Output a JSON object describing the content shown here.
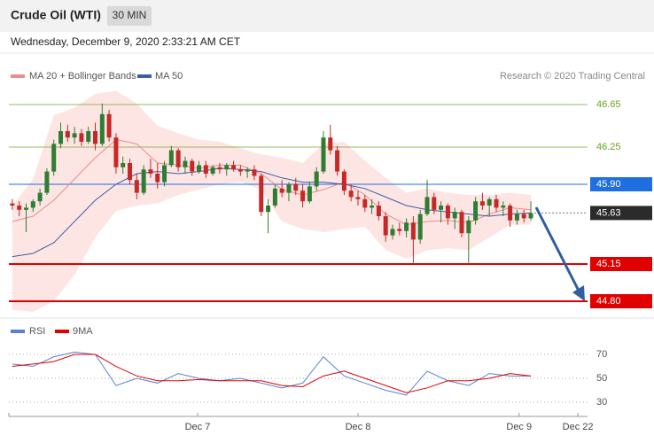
{
  "chart_data": {
    "type": "candlestick",
    "title": "Crude Oil (WTI)",
    "timeframe": "30 MIN",
    "timestamp": "Wednesday, December 9, 2020 2:33:21 AM CET",
    "credit": "Research © 2020 Trading Central",
    "xlim": [
      -0.5,
      83.2
    ],
    "xticks": [
      {
        "value": 26.8,
        "label": "Dec 7"
      },
      {
        "value": 50,
        "label": "Dec 8"
      },
      {
        "value": 73.3,
        "label": "Dec 9"
      },
      {
        "value": 81.8,
        "label": "Dec 22"
      }
    ],
    "ylim": [
      44.66,
      46.8
    ],
    "up_color": "#2e7d32",
    "down_color": "#c62828",
    "candles": [
      [
        45.72,
        45.76,
        45.66,
        45.7
      ],
      [
        45.7,
        45.74,
        45.6,
        45.66
      ],
      [
        45.66,
        45.72,
        45.45,
        45.68
      ],
      [
        45.68,
        45.76,
        45.64,
        45.74
      ],
      [
        45.74,
        45.86,
        45.7,
        45.82
      ],
      [
        45.82,
        46.05,
        45.8,
        46.02
      ],
      [
        46.02,
        46.32,
        45.98,
        46.28
      ],
      [
        46.28,
        46.48,
        46.24,
        46.4
      ],
      [
        46.4,
        46.46,
        46.3,
        46.34
      ],
      [
        46.34,
        46.44,
        46.28,
        46.38
      ],
      [
        46.38,
        46.42,
        46.26,
        46.3
      ],
      [
        46.3,
        46.44,
        46.28,
        46.4
      ],
      [
        46.4,
        46.48,
        46.22,
        46.28
      ],
      [
        46.28,
        46.66,
        46.26,
        46.56
      ],
      [
        46.56,
        46.6,
        46.3,
        46.34
      ],
      [
        46.34,
        46.38,
        46.0,
        46.06
      ],
      [
        46.06,
        46.16,
        46.0,
        46.1
      ],
      [
        46.1,
        46.14,
        45.9,
        45.94
      ],
      [
        45.94,
        46.0,
        45.76,
        45.82
      ],
      [
        45.82,
        46.08,
        45.8,
        46.04
      ],
      [
        46.04,
        46.14,
        45.96,
        46.0
      ],
      [
        46.0,
        46.1,
        45.86,
        45.92
      ],
      [
        45.92,
        46.12,
        45.88,
        46.08
      ],
      [
        46.08,
        46.26,
        46.06,
        46.22
      ],
      [
        46.22,
        46.24,
        46.02,
        46.06
      ],
      [
        46.06,
        46.16,
        46.0,
        46.12
      ],
      [
        46.12,
        46.14,
        45.98,
        46.02
      ],
      [
        46.02,
        46.12,
        46.0,
        46.08
      ],
      [
        46.08,
        46.12,
        45.96,
        46.0
      ],
      [
        46.0,
        46.08,
        45.98,
        46.06
      ],
      [
        46.06,
        46.1,
        46.0,
        46.04
      ],
      [
        46.04,
        46.1,
        45.98,
        46.08
      ],
      [
        46.08,
        46.12,
        46.02,
        46.04
      ],
      [
        46.04,
        46.08,
        45.98,
        46.02
      ],
      [
        46.02,
        46.06,
        45.96,
        46.04
      ],
      [
        46.04,
        46.08,
        45.94,
        45.98
      ],
      [
        45.98,
        46.0,
        45.6,
        45.64
      ],
      [
        45.64,
        45.76,
        45.44,
        45.7
      ],
      [
        45.7,
        45.9,
        45.68,
        45.86
      ],
      [
        45.86,
        45.94,
        45.78,
        45.82
      ],
      [
        45.82,
        45.92,
        45.74,
        45.9
      ],
      [
        45.9,
        45.96,
        45.8,
        45.84
      ],
      [
        45.84,
        45.9,
        45.68,
        45.74
      ],
      [
        45.74,
        45.92,
        45.72,
        45.88
      ],
      [
        45.88,
        46.06,
        45.84,
        46.02
      ],
      [
        46.02,
        46.4,
        46.0,
        46.34
      ],
      [
        46.34,
        46.46,
        46.18,
        46.22
      ],
      [
        46.22,
        46.26,
        45.98,
        46.02
      ],
      [
        46.02,
        46.04,
        45.8,
        45.84
      ],
      [
        45.84,
        45.9,
        45.74,
        45.78
      ],
      [
        45.78,
        45.84,
        45.7,
        45.76
      ],
      [
        45.76,
        45.8,
        45.64,
        45.68
      ],
      [
        45.68,
        45.76,
        45.62,
        45.7
      ],
      [
        45.7,
        45.74,
        45.56,
        45.6
      ],
      [
        45.6,
        45.64,
        45.36,
        45.42
      ],
      [
        45.42,
        45.52,
        45.38,
        45.48
      ],
      [
        45.48,
        45.54,
        45.42,
        45.46
      ],
      [
        45.46,
        45.58,
        45.4,
        45.54
      ],
      [
        45.54,
        45.6,
        45.16,
        45.38
      ],
      [
        45.38,
        45.66,
        45.34,
        45.62
      ],
      [
        45.62,
        45.94,
        45.6,
        45.78
      ],
      [
        45.78,
        45.82,
        45.62,
        45.66
      ],
      [
        45.66,
        45.74,
        45.54,
        45.7
      ],
      [
        45.7,
        45.72,
        45.52,
        45.58
      ],
      [
        45.58,
        45.68,
        45.48,
        45.64
      ],
      [
        45.64,
        45.66,
        45.4,
        45.44
      ],
      [
        45.44,
        45.6,
        45.16,
        45.56
      ],
      [
        45.56,
        45.78,
        45.52,
        45.74
      ],
      [
        45.74,
        45.82,
        45.66,
        45.7
      ],
      [
        45.7,
        45.78,
        45.6,
        45.76
      ],
      [
        45.76,
        45.8,
        45.64,
        45.68
      ],
      [
        45.68,
        45.74,
        45.6,
        45.7
      ],
      [
        45.7,
        45.72,
        45.5,
        45.56
      ],
      [
        45.56,
        45.66,
        45.52,
        45.62
      ],
      [
        45.62,
        45.66,
        45.54,
        45.58
      ],
      [
        45.58,
        45.74,
        45.56,
        45.63
      ]
    ],
    "bands": {
      "name": "MA 20 + Bollinger Bands",
      "color": "#e88e8e",
      "fill": "#fde0de",
      "x": [
        0,
        3,
        6,
        9,
        12,
        15,
        18,
        21,
        24,
        27,
        30,
        33,
        36,
        39,
        42,
        45,
        48,
        51,
        54,
        57,
        60,
        63,
        66,
        69,
        72,
        75
      ],
      "upper": [
        45.7,
        45.95,
        46.55,
        46.62,
        46.75,
        46.78,
        46.66,
        46.45,
        46.38,
        46.32,
        46.3,
        46.24,
        46.18,
        46.15,
        46.1,
        46.28,
        46.3,
        46.12,
        45.96,
        45.82,
        45.86,
        45.82,
        45.8,
        45.8,
        45.82,
        45.8
      ],
      "middle": [
        45.55,
        45.6,
        45.75,
        45.95,
        46.15,
        46.32,
        46.28,
        46.1,
        46.08,
        46.05,
        46.08,
        46.08,
        46.0,
        45.85,
        45.8,
        45.85,
        45.92,
        45.8,
        45.62,
        45.52,
        45.55,
        45.56,
        45.54,
        45.62,
        45.68,
        45.66
      ],
      "lower": [
        44.72,
        44.7,
        44.8,
        45.05,
        45.4,
        45.65,
        45.7,
        45.72,
        45.8,
        45.85,
        45.9,
        45.92,
        45.85,
        45.55,
        45.48,
        45.45,
        45.48,
        45.5,
        45.28,
        45.2,
        45.28,
        45.3,
        45.28,
        45.4,
        45.52,
        45.52
      ]
    },
    "ma50": {
      "name": "MA 50",
      "color": "#3a5ea8",
      "x": [
        0,
        3,
        6,
        9,
        12,
        15,
        18,
        21,
        24,
        27,
        30,
        33,
        36,
        39,
        42,
        45,
        48,
        51,
        54,
        57,
        60,
        63,
        66,
        69,
        72,
        75
      ],
      "values": [
        45.22,
        45.25,
        45.35,
        45.55,
        45.75,
        45.9,
        46.0,
        46.02,
        46.0,
        46.02,
        46.05,
        46.04,
        46.02,
        45.96,
        45.92,
        45.92,
        45.9,
        45.86,
        45.78,
        45.7,
        45.66,
        45.64,
        45.62,
        45.6,
        45.62,
        45.63
      ]
    },
    "levels": [
      {
        "value": 46.65,
        "label": "46.65",
        "color": "#6aa121",
        "style": "line"
      },
      {
        "value": 46.25,
        "label": "46.25",
        "color": "#6aa121",
        "style": "line"
      },
      {
        "value": 45.9,
        "label": "45.90",
        "color": "#1f6fe0",
        "style": "box"
      },
      {
        "value": 45.15,
        "label": "45.15",
        "color": "#e00000",
        "style": "box"
      },
      {
        "value": 44.8,
        "label": "44.80",
        "color": "#e00000",
        "style": "box"
      }
    ],
    "last": {
      "value": 45.63,
      "label": "45.63",
      "color": "#2b2b2b"
    },
    "rsi": {
      "ylim": [
        20,
        81
      ],
      "yticks": [
        30,
        50,
        70
      ],
      "x": [
        0,
        3,
        6,
        9,
        12,
        15,
        18,
        21,
        24,
        27,
        30,
        33,
        36,
        39,
        42,
        45,
        48,
        51,
        54,
        57,
        60,
        63,
        66,
        69,
        72,
        75
      ],
      "series": [
        {
          "name": "RSI",
          "color": "#5b7fd6",
          "values": [
            62,
            60,
            68,
            72,
            70,
            44,
            50,
            46,
            54,
            50,
            48,
            50,
            46,
            42,
            46,
            68,
            52,
            46,
            40,
            36,
            56,
            48,
            44,
            54,
            52,
            52
          ]
        },
        {
          "name": "9MA",
          "color": "#e00000",
          "values": [
            60,
            62,
            64,
            70,
            70,
            60,
            52,
            48,
            48,
            49,
            48,
            48,
            48,
            44,
            43,
            52,
            56,
            50,
            44,
            38,
            42,
            48,
            48,
            50,
            54,
            52
          ]
        }
      ]
    }
  }
}
